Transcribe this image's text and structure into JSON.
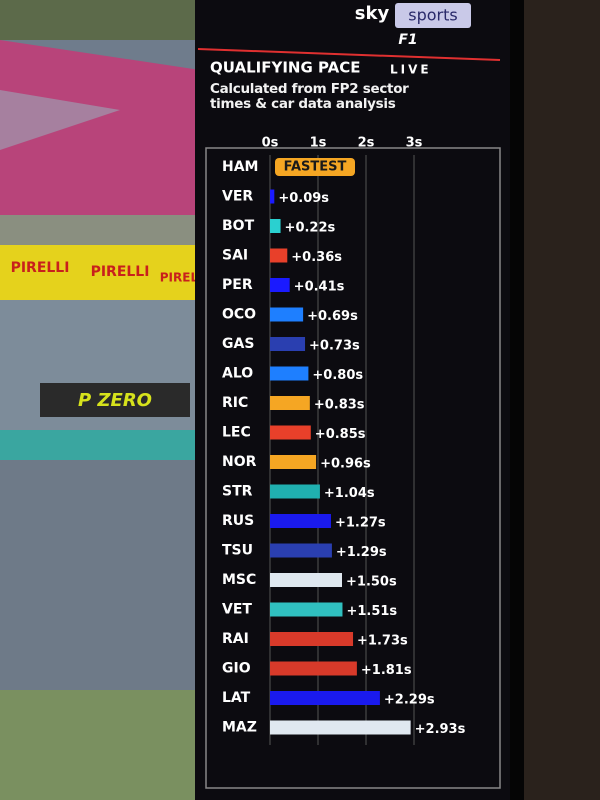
{
  "broadcast": {
    "brand": "sky",
    "channel": "sports",
    "series_logo": "F1"
  },
  "scene_texts": [
    "PIRELLI",
    "PIRELLI",
    "PIRELLI",
    "P ZERO"
  ],
  "chart_data": {
    "type": "bar",
    "orientation": "horizontal",
    "title": "QUALIFYING PACE",
    "badge": "LIVE",
    "subtitle": "Calculated from FP2 sector times & car data analysis",
    "categories": [
      "HAM",
      "VER",
      "BOT",
      "SAI",
      "PER",
      "OCO",
      "GAS",
      "ALO",
      "RIC",
      "LEC",
      "NOR",
      "STR",
      "RUS",
      "TSU",
      "MSC",
      "VET",
      "RAI",
      "GIO",
      "LAT",
      "MAZ"
    ],
    "values": [
      0,
      0.09,
      0.22,
      0.36,
      0.41,
      0.69,
      0.73,
      0.8,
      0.83,
      0.85,
      0.96,
      1.04,
      1.27,
      1.29,
      1.5,
      1.51,
      1.73,
      1.81,
      2.29,
      2.93
    ],
    "value_labels": [
      "FASTEST",
      "+0.09s",
      "+0.22s",
      "+0.36s",
      "+0.41s",
      "+0.69s",
      "+0.73s",
      "+0.80s",
      "+0.83s",
      "+0.85s",
      "+0.96s",
      "+1.04s",
      "+1.27s",
      "+1.29s",
      "+1.50s",
      "+1.51s",
      "+1.73s",
      "+1.81s",
      "+2.29s",
      "+2.93s"
    ],
    "colors": [
      "#f5a623",
      "#1a1aff",
      "#2ad0d0",
      "#e8402a",
      "#1a1aff",
      "#1e7fff",
      "#2a3fb0",
      "#1e7fff",
      "#f5a623",
      "#e8402a",
      "#f5a623",
      "#20b0b0",
      "#1a1aee",
      "#2a3fb0",
      "#e0e8f0",
      "#30c0c0",
      "#d83a2a",
      "#d83a2a",
      "#1a1aee",
      "#e0e8f0"
    ],
    "xlim": [
      0,
      3
    ],
    "xticks": [
      {
        "value": 0,
        "label": "0s"
      },
      {
        "value": 1,
        "label": "1s"
      },
      {
        "value": 2,
        "label": "2s"
      },
      {
        "value": 3,
        "label": "3s"
      }
    ],
    "grid": true
  }
}
